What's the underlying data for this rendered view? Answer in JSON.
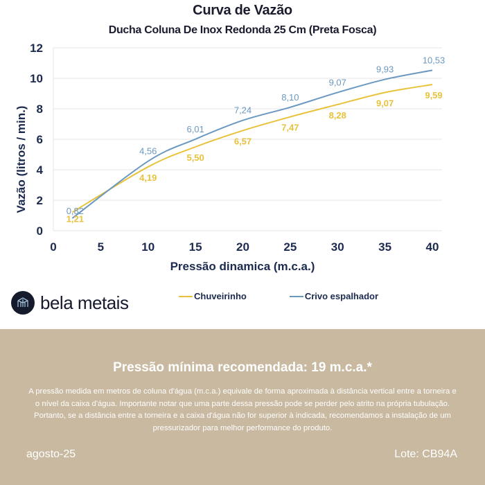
{
  "colors": {
    "chuveirinho": "#e8c23a",
    "crivo": "#6b98c0",
    "axis_text": "#1b2a4e",
    "grid": "#e6e6e6",
    "footer_bg": "#c8b9a0"
  },
  "chart_data": {
    "type": "line",
    "title": "Curva de Vazão",
    "subtitle": "Ducha Coluna De Inox Redonda 25 Cm (Preta Fosca)",
    "xlabel": "Pressão dinamica (m.c.a.)",
    "ylabel": "Vazão (litros / min.)",
    "xlim": [
      0,
      40
    ],
    "ylim": [
      0,
      12
    ],
    "xticks": [
      0,
      5,
      10,
      15,
      20,
      25,
      30,
      35,
      40
    ],
    "yticks": [
      0,
      2,
      4,
      6,
      8,
      10,
      12
    ],
    "grid": "horizontal",
    "legend_position": "bottom",
    "x": [
      2,
      10,
      15,
      20,
      25,
      30,
      35,
      40
    ],
    "series": [
      {
        "name": "Chuveirinho",
        "color": "#e8c23a",
        "values": [
          1.21,
          4.19,
          5.5,
          6.57,
          7.47,
          8.28,
          9.07,
          9.59
        ],
        "labels": [
          "1,21",
          "4,19",
          "5,50",
          "6,57",
          "7,47",
          "8,28",
          "9,07",
          "9,59"
        ]
      },
      {
        "name": "Crivo espalhador",
        "color": "#6b98c0",
        "values": [
          0.82,
          4.56,
          6.01,
          7.24,
          8.1,
          9.07,
          9.93,
          10.53
        ],
        "labels": [
          "0,82",
          "4,56",
          "6,01",
          "7,24",
          "8,10",
          "9,07",
          "9,93",
          "10,53"
        ]
      }
    ]
  },
  "brand": {
    "name": "bela metais"
  },
  "footer": {
    "title": "Pressão mínima recomendada: 19 m.c.a.*",
    "text": "A pressão medida em metros de coluna d'água (m.c.a.) equivale de forma aproximada à distância vertical entre a torneira e o nível da caixa d'água. Importante notar que uma parte dessa pressão pode se perder pelo atrito na própria tubulação. Portanto, se a distância entre a torneira e a caixa d'água não for superior à indicada, recomendamos a instalação de um pressurizador para melhor performance do produto.",
    "date": "agosto-25",
    "lote": "Lote: CB94A"
  }
}
